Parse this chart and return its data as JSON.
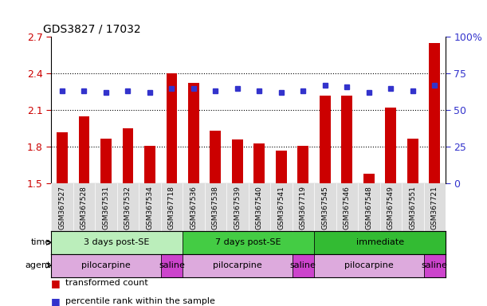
{
  "title": "GDS3827 / 17032",
  "samples": [
    "GSM367527",
    "GSM367528",
    "GSM367531",
    "GSM367532",
    "GSM367534",
    "GSM367718",
    "GSM367536",
    "GSM367538",
    "GSM367539",
    "GSM367540",
    "GSM367541",
    "GSM367719",
    "GSM367545",
    "GSM367546",
    "GSM367548",
    "GSM367549",
    "GSM367551",
    "GSM367721"
  ],
  "bar_values": [
    1.92,
    2.05,
    1.87,
    1.95,
    1.81,
    2.4,
    2.32,
    1.93,
    1.86,
    1.83,
    1.77,
    1.81,
    2.22,
    2.22,
    1.58,
    2.12,
    1.87,
    2.65
  ],
  "dot_values": [
    63,
    63,
    62,
    63,
    62,
    65,
    65,
    63,
    65,
    63,
    62,
    63,
    67,
    66,
    62,
    65,
    63,
    67
  ],
  "bar_color": "#cc0000",
  "dot_color": "#3333cc",
  "ylim_left": [
    1.5,
    2.7
  ],
  "ylim_right": [
    0,
    100
  ],
  "yticks_left": [
    1.5,
    1.8,
    2.1,
    2.4,
    2.7
  ],
  "ytick_labels_left": [
    "1.5",
    "1.8",
    "2.1",
    "2.4",
    "2.7"
  ],
  "yticks_right": [
    0,
    25,
    50,
    75,
    100
  ],
  "ytick_labels_right": [
    "0",
    "25",
    "50",
    "75",
    "100%"
  ],
  "time_groups": [
    {
      "label": "3 days post-SE",
      "start": 0,
      "end": 5,
      "color": "#bbeebb"
    },
    {
      "label": "7 days post-SE",
      "start": 6,
      "end": 11,
      "color": "#44cc44"
    },
    {
      "label": "immediate",
      "start": 12,
      "end": 17,
      "color": "#33bb33"
    }
  ],
  "agent_groups": [
    {
      "label": "pilocarpine",
      "start": 0,
      "end": 4,
      "color": "#ddaadd"
    },
    {
      "label": "saline",
      "start": 5,
      "end": 5,
      "color": "#cc44cc"
    },
    {
      "label": "pilocarpine",
      "start": 6,
      "end": 10,
      "color": "#ddaadd"
    },
    {
      "label": "saline",
      "start": 11,
      "end": 11,
      "color": "#cc44cc"
    },
    {
      "label": "pilocarpine",
      "start": 12,
      "end": 16,
      "color": "#ddaadd"
    },
    {
      "label": "saline",
      "start": 17,
      "end": 17,
      "color": "#cc44cc"
    }
  ],
  "xtick_bg_color": "#dddddd",
  "time_label": "time",
  "agent_label": "agent",
  "legend_bar": "transformed count",
  "legend_dot": "percentile rank within the sample",
  "bar_width": 0.5
}
